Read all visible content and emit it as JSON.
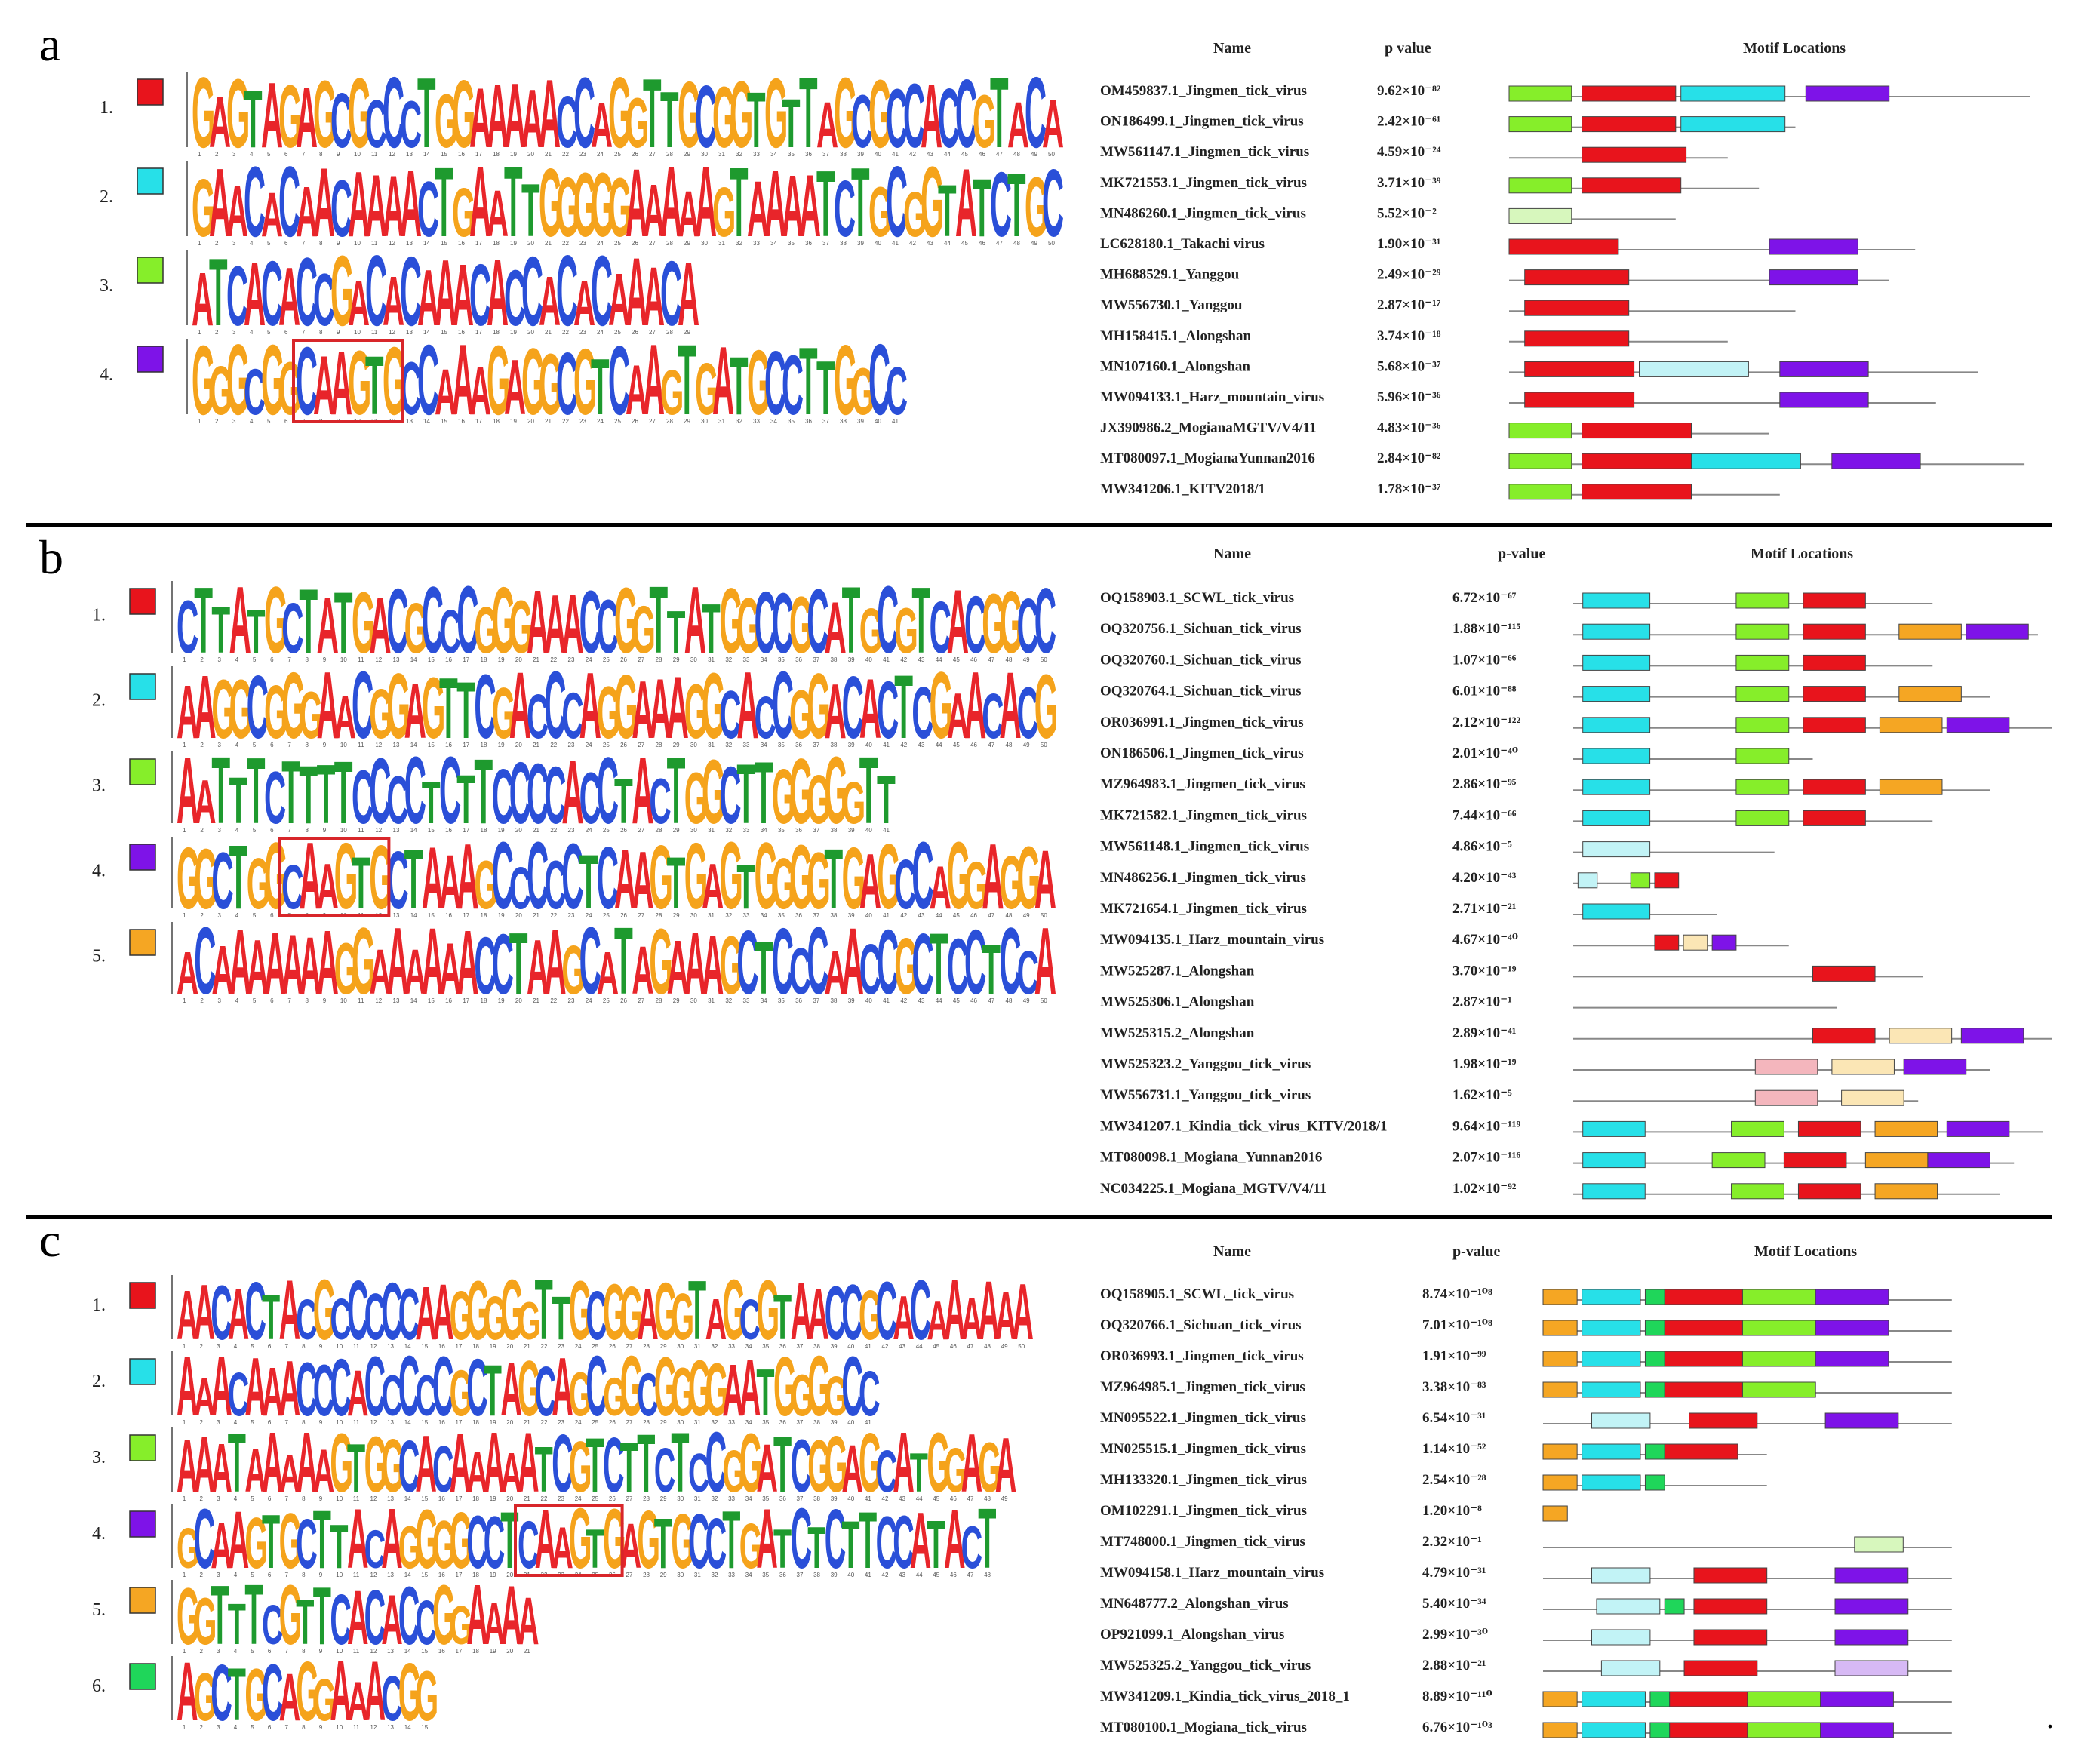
{
  "panels": [
    {
      "letter": "a",
      "headers": {
        "name": "Name",
        "pvalue": "p value",
        "locations": "Motif Locations"
      },
      "motifs": [
        {
          "index": "1.",
          "color": "#e8141c",
          "seq": "GAGTAGAGCGCCCTGGAAAAACCAGGTTGCGGTGTTAGCGCCACCGTACA"
        },
        {
          "index": "2.",
          "color": "#27e0e8",
          "seq": "GAACACAACAAAACTGAATTGGGGGAAAAAGTAAAATCTGCGGTATCTGC"
        },
        {
          "index": "3.",
          "color": "#86ee2a",
          "seq": "ATCACACCGACACAAACACCACACAAACA"
        },
        {
          "index": "4.",
          "color": "#7e13e8",
          "seq": "GGGCGGCAAGTGCCAAAGAGGCGTCAAGTGATGCCTTGGCC",
          "box_start": 6,
          "box_len": 6
        }
      ],
      "rows": [
        {
          "name": "OM459837.1_Jingmen_tick_virus",
          "pvalue": "9.62×10⁻⁸²"
        },
        {
          "name": "ON186499.1_Jingmen_tick_virus",
          "pvalue": "2.42×10⁻⁶¹"
        },
        {
          "name": "MW561147.1_Jingmen_tick_virus",
          "pvalue": "4.59×10⁻²⁴"
        },
        {
          "name": "MK721553.1_Jingmen_tick_virus",
          "pvalue": "3.71×10⁻³⁹"
        },
        {
          "name": "MN486260.1_Jingmen_tick_virus",
          "pvalue": "5.52×10⁻²"
        },
        {
          "name": "LC628180.1_Takachi virus",
          "pvalue": "1.90×10⁻³¹"
        },
        {
          "name": "MH688529.1_Yanggou",
          "pvalue": "2.49×10⁻²⁹"
        },
        {
          "name": "MW556730.1_Yanggou",
          "pvalue": "2.87×10⁻¹⁷"
        },
        {
          "name": "MH158415.1_Alongshan",
          "pvalue": "3.74×10⁻¹⁸"
        },
        {
          "name": "MN107160.1_Alongshan",
          "pvalue": "5.68×10⁻³⁷"
        },
        {
          "name": "MW094133.1_Harz_mountain_virus",
          "pvalue": "5.96×10⁻³⁶"
        },
        {
          "name": "JX390986.2_MogianaMGTV/V4/11",
          "pvalue": "4.83×10⁻³⁶"
        },
        {
          "name": "MT080097.1_MogianaYunnan2016",
          "pvalue": "2.84×10⁻⁸²"
        },
        {
          "name": "MW341206.1_KITV2018/1",
          "pvalue": "1.78×10⁻³⁷"
        }
      ]
    },
    {
      "letter": "b",
      "headers": {
        "name": "Name",
        "pvalue": "p-value",
        "locations": "Motif Locations"
      },
      "motifs": [
        {
          "index": "1.",
          "color": "#e8141c",
          "seq": "CTTATGCTATGACGCCCGGGAAACCGGTTATGGCCGCATGCGTCACGGCC"
        },
        {
          "index": "2.",
          "color": "#27e0e8",
          "seq": "AAGGCGGGAACGGAGTTCGACCCAGGAAAGGCACCGGACACTCGAACACG"
        },
        {
          "index": "3.",
          "color": "#86ee2a",
          "seq": "AATTTCTTTTCCCCTCTTCCCCACCTACTGGCTTGGGGGTT"
        },
        {
          "index": "4.",
          "color": "#7e13e8",
          "seq": "GGCTGGCAAGTGCTAAAGCCCCCTCAAGTGAGTGGGGTGAGCCAGGAGGA",
          "box_start": 6,
          "box_len": 6
        },
        {
          "index": "5.",
          "color": "#f5a623",
          "seq": "ACAAAAAAAGGAAAAAACCTAAGCATAGAAAGCTCCCAACCGCTCCTCCA"
        }
      ],
      "rows": [
        {
          "name": "OQ158903.1_SCWL_tick_virus",
          "pvalue": "6.72×10⁻⁶⁷"
        },
        {
          "name": "OQ320756.1_Sichuan_tick_virus",
          "pvalue": "1.88×10⁻¹¹⁵"
        },
        {
          "name": "OQ320760.1_Sichuan_tick_virus",
          "pvalue": "1.07×10⁻⁶⁶"
        },
        {
          "name": "OQ320764.1_Sichuan_tick_virus",
          "pvalue": "6.01×10⁻⁸⁸"
        },
        {
          "name": "OR036991.1_Jingmen_tick_virus",
          "pvalue": "2.12×10⁻¹²²"
        },
        {
          "name": "ON186506.1_Jingmen_tick_virus",
          "pvalue": "2.01×10⁻⁴⁰"
        },
        {
          "name": "MZ964983.1_Jingmen_tick_virus",
          "pvalue": "2.86×10⁻⁹⁵"
        },
        {
          "name": "MK721582.1_Jingmen_tick_virus",
          "pvalue": "7.44×10⁻⁶⁶"
        },
        {
          "name": "MW561148.1_Jingmen_tick_virus",
          "pvalue": "4.86×10⁻⁵"
        },
        {
          "name": "MN486256.1_Jingmen_tick_virus",
          "pvalue": "4.20×10⁻⁴³"
        },
        {
          "name": "MK721654.1_Jingmen_tick_virus",
          "pvalue": "2.71×10⁻²¹"
        },
        {
          "name": "MW094135.1_Harz_mountain_virus",
          "pvalue": "4.67×10⁻⁴⁰"
        },
        {
          "name": "MW525287.1_Alongshan",
          "pvalue": "3.70×10⁻¹⁹"
        },
        {
          "name": "MW525306.1_Alongshan",
          "pvalue": "2.87×10⁻¹"
        },
        {
          "name": "MW525315.2_Alongshan",
          "pvalue": "2.89×10⁻⁴¹"
        },
        {
          "name": "MW525323.2_Yanggou_tick_virus",
          "pvalue": "1.98×10⁻¹⁹"
        },
        {
          "name": "MW556731.1_Yanggou_tick_virus",
          "pvalue": "1.62×10⁻⁵"
        },
        {
          "name": "MW341207.1_Kindia_tick_virus_KITV/2018/1",
          "pvalue": "9.64×10⁻¹¹⁹"
        },
        {
          "name": "MT080098.1_Mogiana_Yunnan2016",
          "pvalue": "2.07×10⁻¹¹⁶"
        },
        {
          "name": "NC034225.1_Mogiana_MGTV/V4/11",
          "pvalue": "1.02×10⁻⁹²"
        }
      ]
    },
    {
      "letter": "c",
      "headers": {
        "name": "Name",
        "pvalue": "p-value",
        "locations": "Motif Locations"
      },
      "motifs": [
        {
          "index": "1.",
          "color": "#e8141c",
          "seq": "AACACTACGCCCCCAAGGGGGTTGCGGAGGTAGCGTAACCGCACAAAAAA"
        },
        {
          "index": "2.",
          "color": "#27e0e8",
          "seq": "AAACAAACCCACCCCCGCTAGCAGCGGCGGGGAATGGGGCC"
        },
        {
          "index": "3.",
          "color": "#86ee2a",
          "seq": "AAATAAAAAGTGGCACAAAAATCGTCTTCTCCGGATCGGAGCATGGAGA"
        },
        {
          "index": "4.",
          "color": "#7e13e8",
          "seq": "GCAAGTGCTTACAGGGGCCTCAAGTGAGTGCCTGATCTCTTCCATACT",
          "box_start": 20,
          "box_len": 6
        },
        {
          "index": "5.",
          "color": "#f5a623",
          "seq": "GGTTTCGTTCACACCGGAAAA"
        },
        {
          "index": "6.",
          "color": "#1fd65a",
          "seq": "AGCTGCAGGAAACGG"
        }
      ],
      "rows": [
        {
          "name": "OQ158905.1_SCWL_tick_virus",
          "pvalue": "8.74×10⁻¹⁰⁸"
        },
        {
          "name": "OQ320766.1_Sichuan_tick_virus",
          "pvalue": "7.01×10⁻¹⁰⁸"
        },
        {
          "name": "OR036993.1_Jingmen_tick_virus",
          "pvalue": "1.91×10⁻⁹⁹"
        },
        {
          "name": "MZ964985.1_Jingmen_tick_virus",
          "pvalue": "3.38×10⁻⁸³"
        },
        {
          "name": "MN095522.1_Jingmen_tick_virus",
          "pvalue": "6.54×10⁻³¹"
        },
        {
          "name": "MN025515.1_Jingmen_tick_virus",
          "pvalue": "1.14×10⁻⁵²"
        },
        {
          "name": "MH133320.1_Jingmen_tick_virus",
          "pvalue": "2.54×10⁻²⁸"
        },
        {
          "name": "OM102291.1_Jingmen_tick_virus",
          "pvalue": "1.20×10⁻⁸"
        },
        {
          "name": "MT748000.1_Jingmen_tick_virus",
          "pvalue": "2.32×10⁻¹"
        },
        {
          "name": "MW094158.1_Harz_mountain_virus",
          "pvalue": "4.79×10⁻³¹"
        },
        {
          "name": "MN648777.2_Alongshan_virus",
          "pvalue": "5.40×10⁻³⁴"
        },
        {
          "name": "OP921099.1_Alongshan_virus",
          "pvalue": "2.99×10⁻³⁰"
        },
        {
          "name": "MW525325.2_Yanggou_tick_virus",
          "pvalue": "2.88×10⁻²¹"
        },
        {
          "name": "MW341209.1_Kindia_tick_virus_2018_1",
          "pvalue": "8.89×10⁻¹¹⁰"
        },
        {
          "name": "MT080100.1_Mogiana_tick_virus",
          "pvalue": "6.76×10⁻¹⁰³"
        }
      ]
    }
  ],
  "base_colors": {
    "A": "#e8252a",
    "C": "#2a4fd8",
    "G": "#f5a31b",
    "T": "#1e9a2e"
  },
  "box_color": "#d8262a",
  "trailing_mark": "."
}
